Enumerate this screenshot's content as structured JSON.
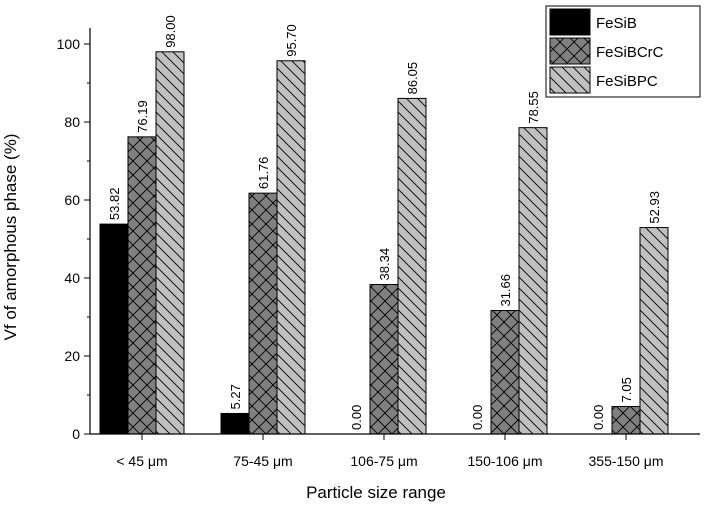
{
  "chart_data": {
    "type": "bar",
    "title": "",
    "xlabel": "Particle size range",
    "ylabel": "Vf of amorphous phase (%)",
    "ylim": [
      0,
      100
    ],
    "yticks": [
      0,
      20,
      40,
      60,
      80,
      100
    ],
    "grid": false,
    "legend_position": "top-right",
    "categories": [
      "< 45 μm",
      "75-45 μm",
      "106-75 μm",
      "150-106 μm",
      "355-150 μm"
    ],
    "series": [
      {
        "name": "FeSiB",
        "fill": "#000000",
        "pattern": "solid",
        "values": [
          53.82,
          5.27,
          0.0,
          0.0,
          0.0
        ],
        "labels": [
          "53.82",
          "5.27",
          "0.00",
          "0.00",
          "0.00"
        ]
      },
      {
        "name": "FeSiBCrC",
        "fill": "#808080",
        "pattern": "crosshatch",
        "values": [
          76.19,
          61.76,
          38.34,
          31.66,
          7.05
        ],
        "labels": [
          "76.19",
          "61.76",
          "38.34",
          "31.66",
          "7.05"
        ]
      },
      {
        "name": "FeSiBPC",
        "fill": "#c0c0c0",
        "pattern": "backslash",
        "values": [
          98.0,
          95.7,
          86.05,
          78.55,
          52.93
        ],
        "labels": [
          "98.00",
          "95.70",
          "86.05",
          "78.55",
          "52.93"
        ]
      }
    ]
  }
}
